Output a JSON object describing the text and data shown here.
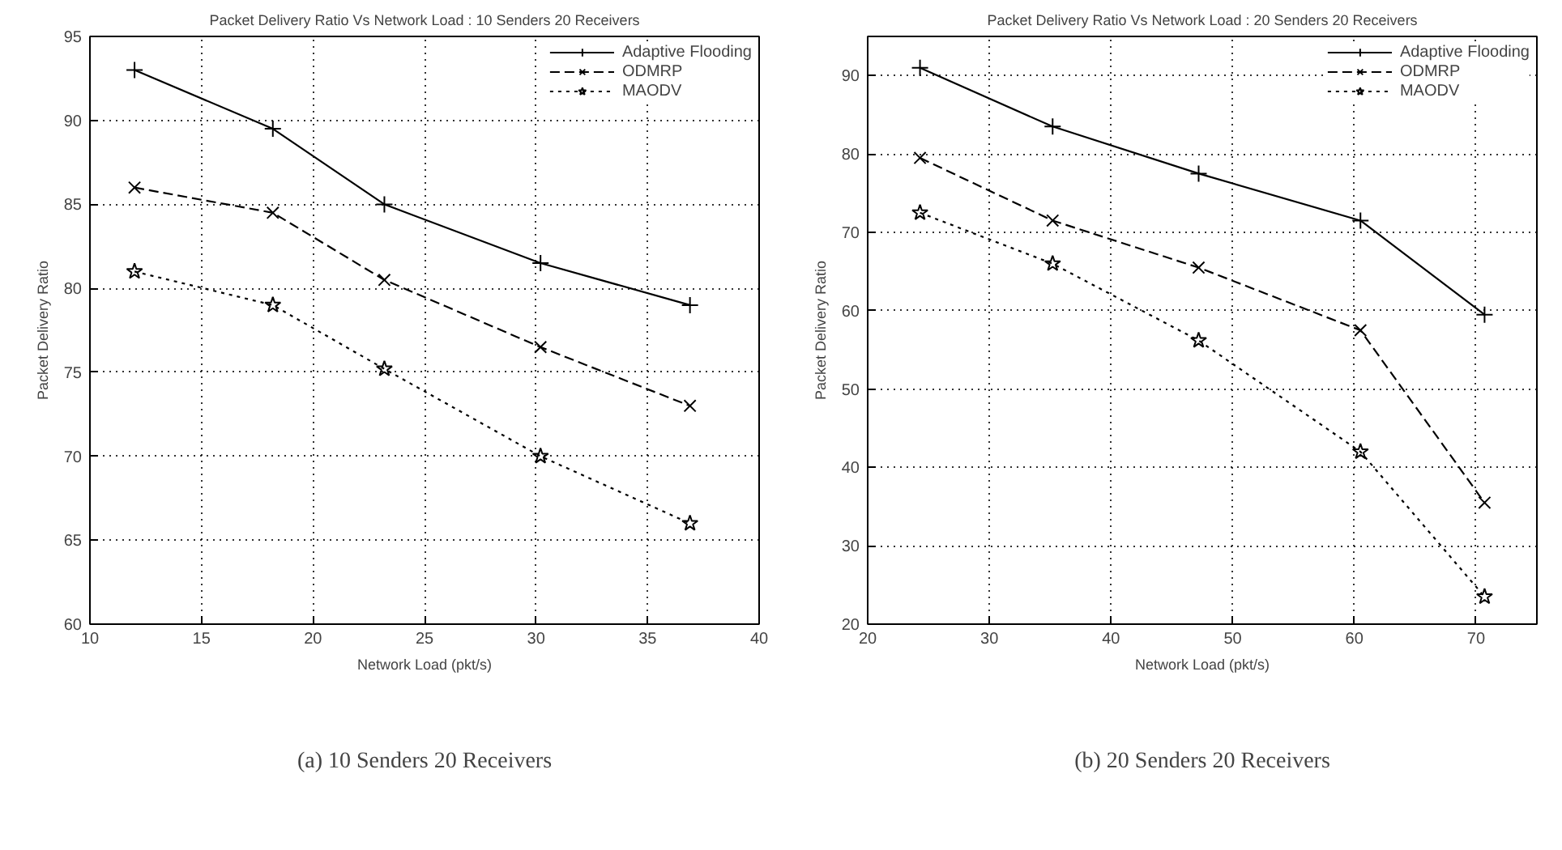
{
  "chart_data": [
    {
      "type": "line",
      "title": "Packet Delivery Ratio Vs Network Load : 10 Senders 20 Receivers",
      "xlabel": "Network Load (pkt/s)",
      "ylabel": "Packet Delivery Ratio",
      "x": [
        12,
        18.2,
        23.2,
        30.2,
        36.9
      ],
      "series": [
        {
          "name": "Adaptive Flooding",
          "color": "#000000",
          "marker": "cross",
          "line_style": "solid",
          "values": [
            93,
            89.5,
            85,
            81.5,
            79
          ]
        },
        {
          "name": "ODMRP",
          "color": "#000000",
          "marker": "x",
          "line_style": "dashed",
          "values": [
            86,
            84.5,
            80.5,
            76.5,
            73
          ]
        },
        {
          "name": "MAODV",
          "color": "#000000",
          "marker": "star",
          "line_style": "dotted",
          "values": [
            81,
            79,
            75.2,
            70,
            66
          ]
        }
      ],
      "xlim": [
        10,
        40
      ],
      "xticks": [
        10,
        15,
        20,
        25,
        30,
        35,
        40
      ],
      "ylim": [
        60,
        95
      ],
      "yticks": [
        60,
        65,
        70,
        75,
        80,
        85,
        90,
        95
      ],
      "grid": true,
      "legend": "top right",
      "annotations": [
        "(a) 10 Senders 20 Receivers"
      ]
    },
    {
      "type": "line",
      "title": "Packet Delivery Ratio Vs Network Load : 20 Senders 20 Receivers",
      "xlabel": "Network Load (pkt/s)",
      "ylabel": "Packet Delivery Ratio",
      "x": [
        24.3,
        35.2,
        47.2,
        60.5,
        70.7
      ],
      "series": [
        {
          "name": "Adaptive Flooding",
          "color": "#000000",
          "marker": "cross",
          "line_style": "solid",
          "values": [
            91,
            83.5,
            77.5,
            71.5,
            59.5
          ]
        },
        {
          "name": "ODMRP",
          "color": "#000000",
          "marker": "x",
          "line_style": "dashed",
          "values": [
            79.5,
            71.5,
            65.5,
            57.5,
            35.5
          ]
        },
        {
          "name": "MAODV",
          "color": "#000000",
          "marker": "star",
          "line_style": "dotted",
          "values": [
            72.5,
            66,
            56.2,
            42,
            23.5
          ]
        }
      ],
      "xlim": [
        20,
        75
      ],
      "xticks": [
        20,
        30,
        40,
        50,
        60,
        70
      ],
      "ylim": [
        20,
        95
      ],
      "yticks": [
        20,
        30,
        40,
        50,
        60,
        70,
        80,
        90
      ],
      "grid": true,
      "legend": "top right",
      "annotations": [
        "(b) 20 Senders 20 Receivers"
      ]
    }
  ]
}
